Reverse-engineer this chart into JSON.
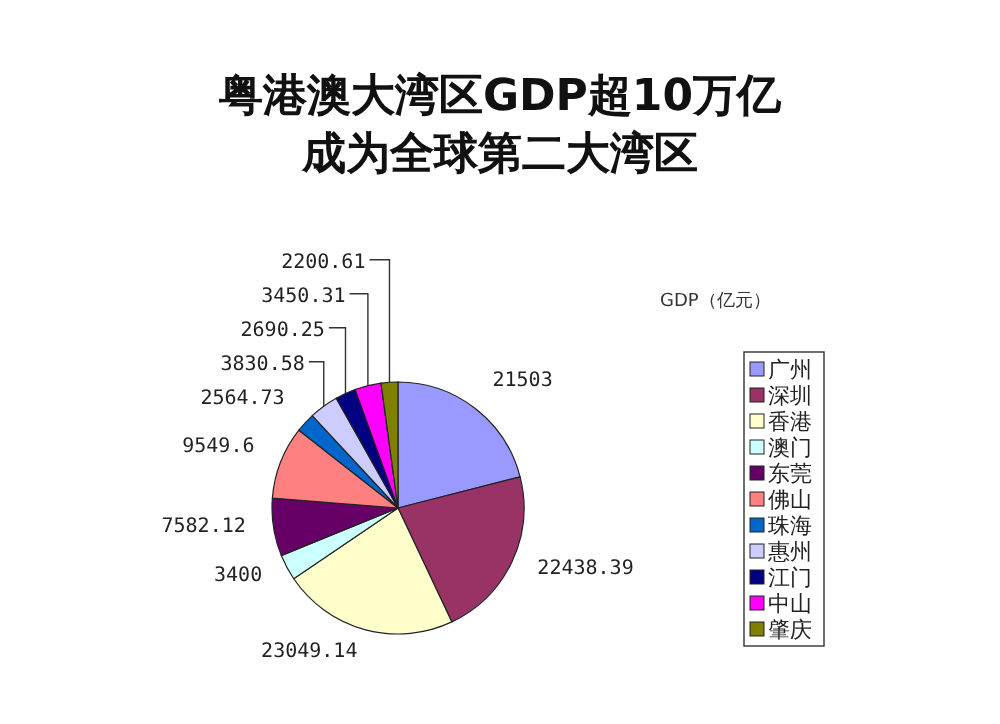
{
  "chart_data": {
    "type": "pie",
    "title": "粤港澳大湾区GDP超10万亿",
    "subtitle": "成为全球第二大湾区",
    "legend_title": "GDP（亿元）",
    "legend": "right",
    "data_labels": true,
    "categories": [
      "广州",
      "深圳",
      "香港",
      "澳门",
      "东莞",
      "佛山",
      "珠海",
      "惠州",
      "江门",
      "中山",
      "肇庆"
    ],
    "values": [
      21503,
      22438.39,
      23049.14,
      3400,
      7582.12,
      9549.6,
      2564.73,
      3830.58,
      2690.25,
      3450.31,
      2200.61
    ],
    "colors": [
      "#9999ff",
      "#993366",
      "#ffffcc",
      "#ccffff",
      "#660066",
      "#ff8080",
      "#0066cc",
      "#ccccff",
      "#000080",
      "#ff00ff",
      "#808000"
    ]
  }
}
